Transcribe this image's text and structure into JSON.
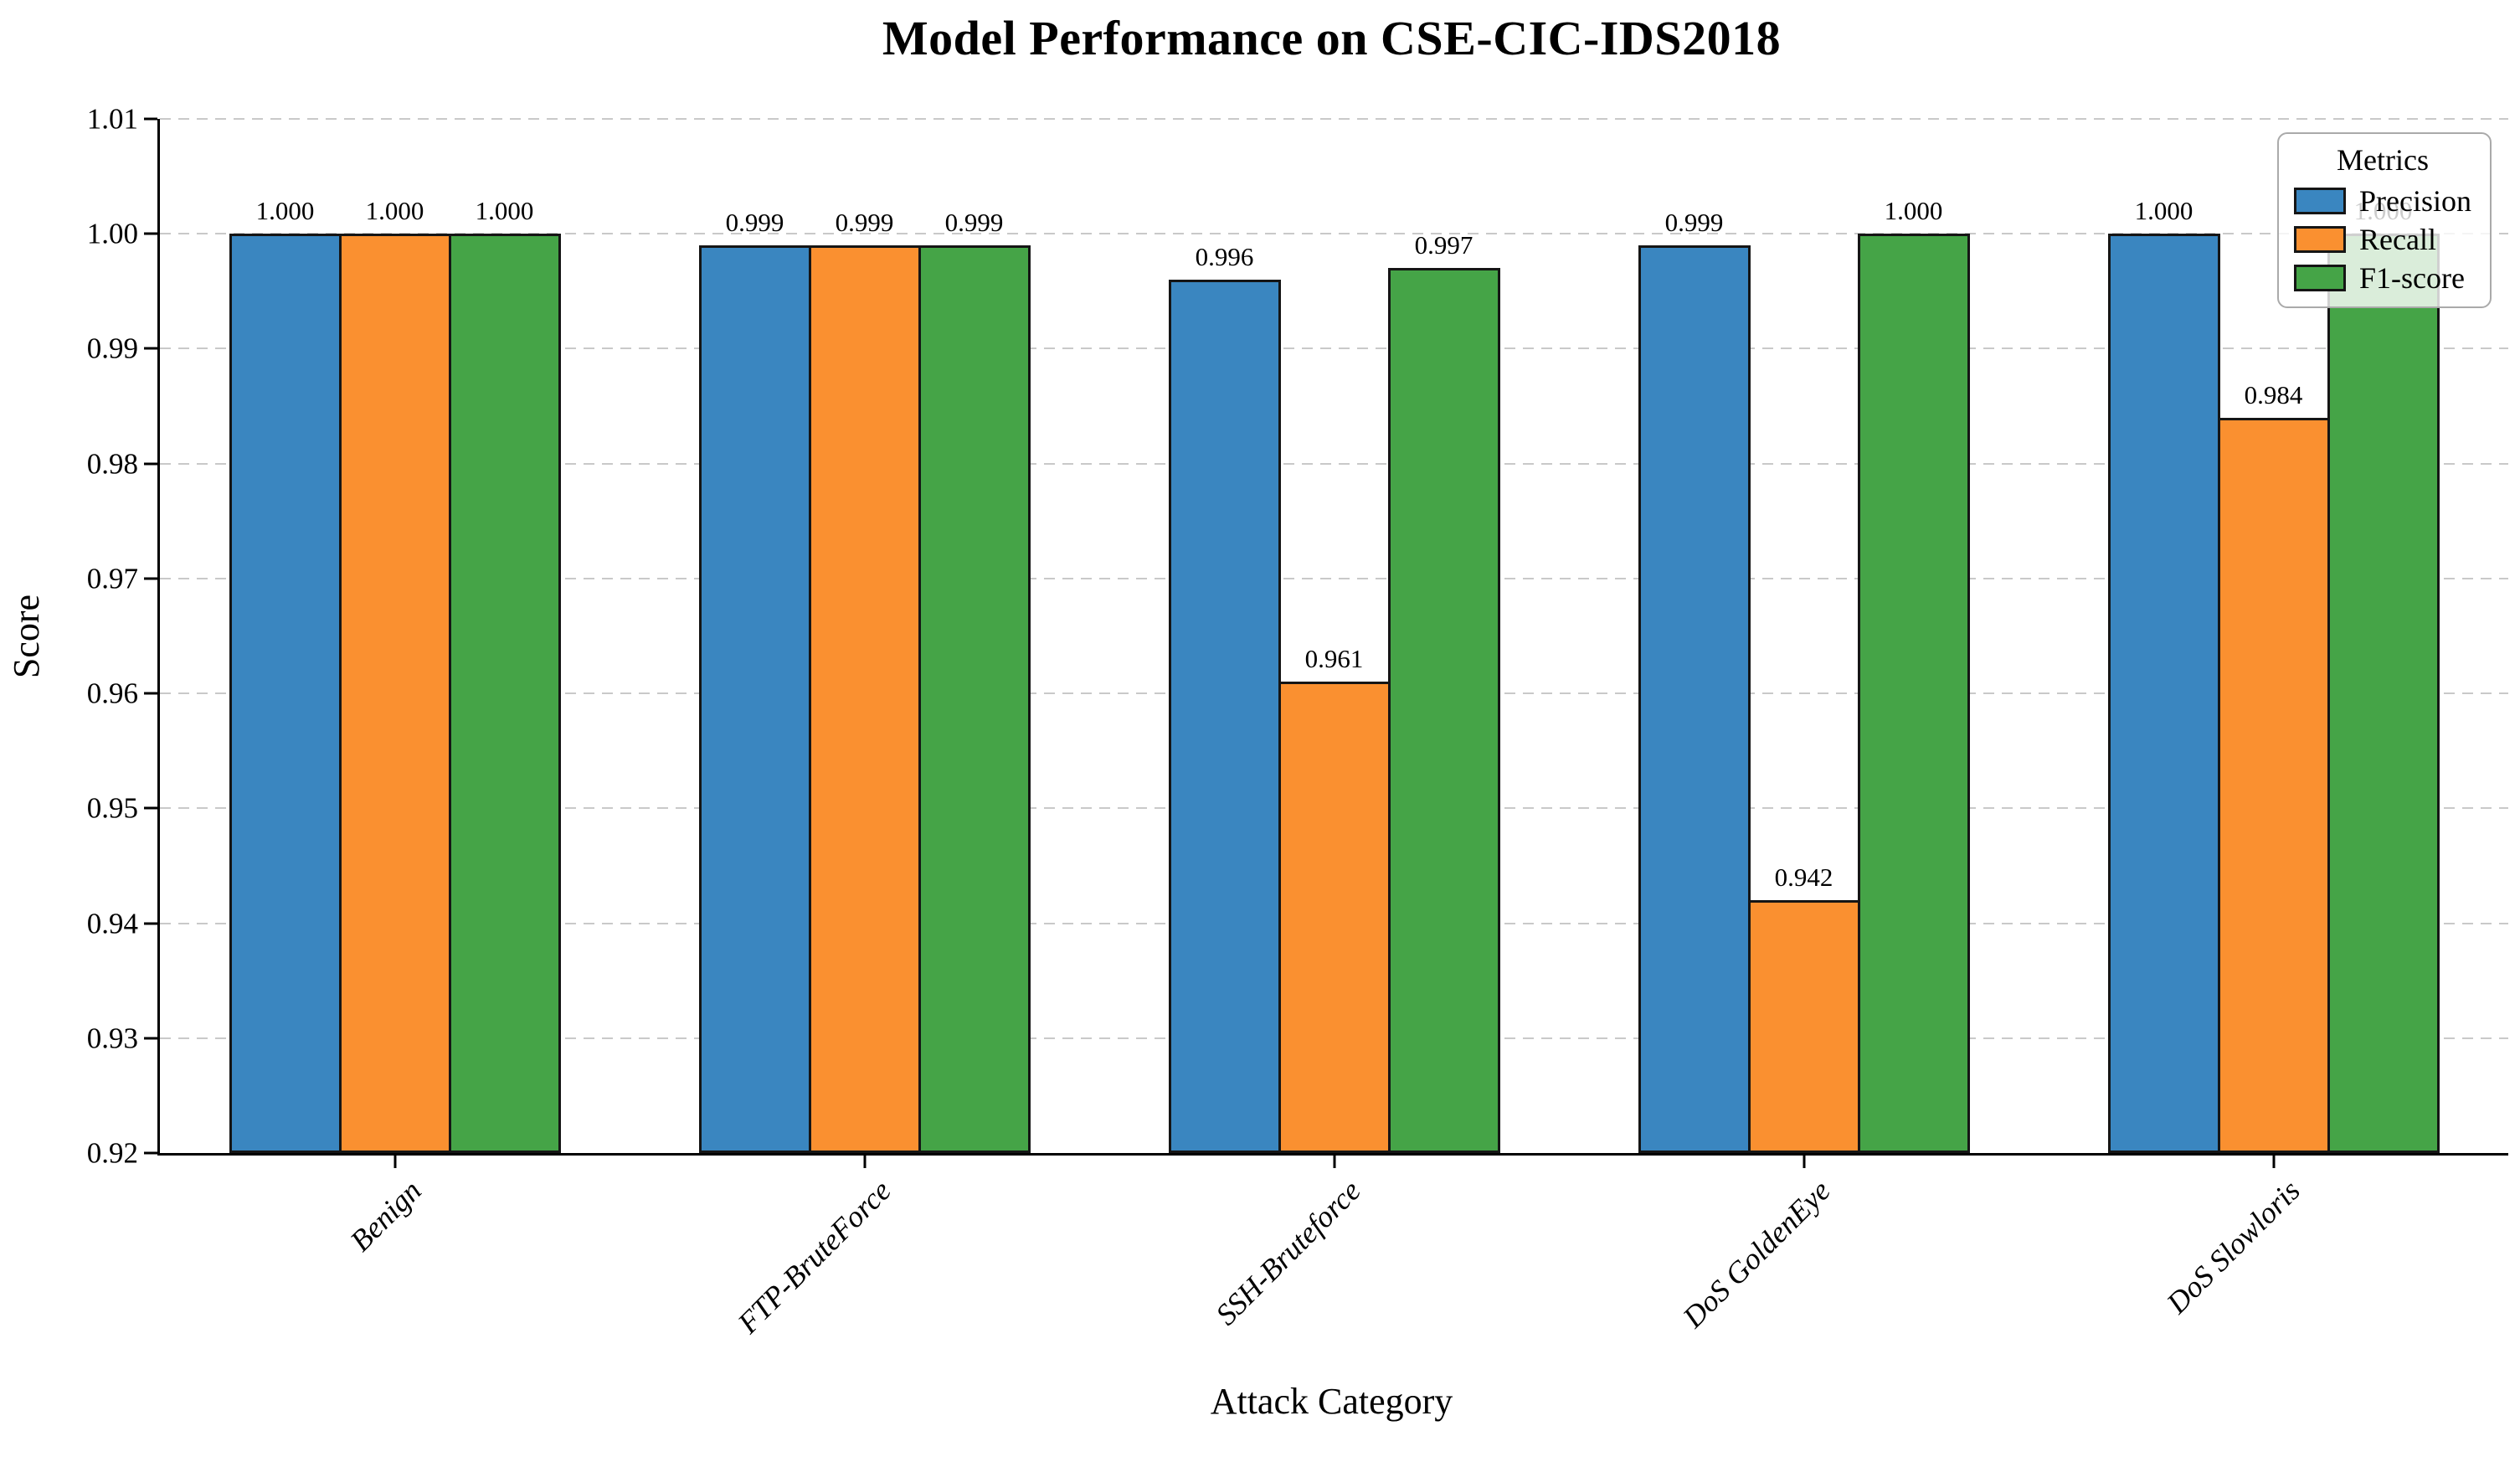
{
  "chart_data": {
    "type": "bar",
    "title": "Model Performance on CSE-CIC-IDS2018",
    "xlabel": "Attack Category",
    "ylabel": "Score",
    "ylim": [
      0.92,
      1.01
    ],
    "ytick_labels": [
      "1.01",
      "1.00",
      "0.99",
      "0.98",
      "0.97",
      "0.96",
      "0.95",
      "0.94",
      "0.93",
      "0.92"
    ],
    "categories": [
      "Benign",
      "FTP-BruteForce",
      "SSH-Bruteforce",
      "DoS GoldenEye",
      "DoS Slowloris"
    ],
    "series": [
      {
        "name": "Precision",
        "color": "#3a86c0",
        "values": [
          1.0,
          0.999,
          0.996,
          0.999,
          1.0
        ],
        "labels": [
          "1.000",
          "0.999",
          "0.996",
          "0.999",
          "1.000"
        ]
      },
      {
        "name": "Recall",
        "color": "#fa9030",
        "values": [
          1.0,
          0.999,
          0.961,
          0.942,
          0.984
        ],
        "labels": [
          "1.000",
          "0.999",
          "0.961",
          "0.942",
          "0.984"
        ]
      },
      {
        "name": "F1-score",
        "color": "#45a447",
        "values": [
          1.0,
          0.999,
          0.997,
          1.0,
          1.0
        ],
        "labels": [
          "1.000",
          "0.999",
          "0.997",
          "1.000",
          "1.000"
        ]
      }
    ],
    "legend": {
      "title": "Metrics",
      "position": "upper right"
    },
    "grid": {
      "axis": "y",
      "style": "dashed",
      "on": true
    },
    "bar_edge_color": "#151515"
  }
}
